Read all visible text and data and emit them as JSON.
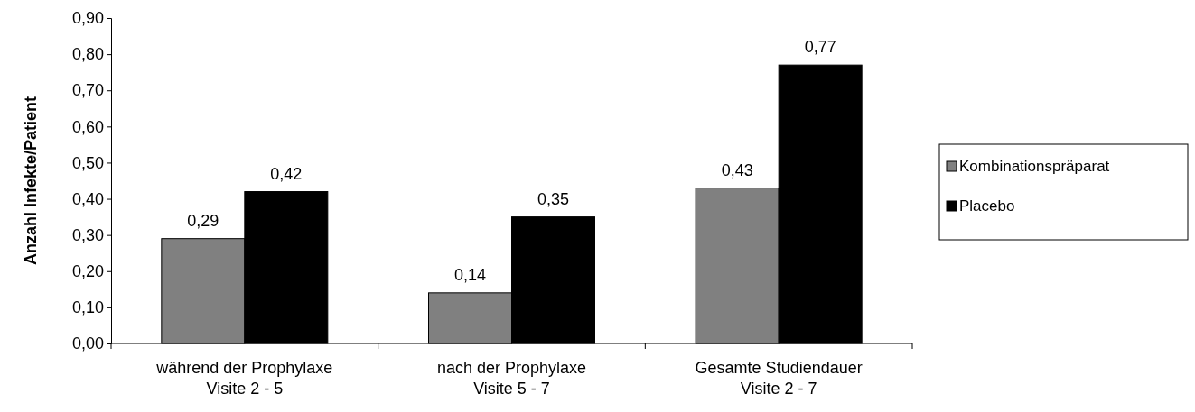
{
  "chart_data": {
    "type": "bar",
    "ylabel": "Anzahl Infekte/Patient",
    "categories": [
      "während der Prophylaxe\nVisite 2 - 5",
      "nach der Prophylaxe\nVisite 5 - 7",
      "Gesamte Studiendauer\nVisite 2 - 7"
    ],
    "series": [
      {
        "name": "Kombinationspräparat",
        "color": "#808080",
        "values": [
          0.29,
          0.14,
          0.43
        ],
        "value_labels": [
          "0,29",
          "0,14",
          "0,43"
        ]
      },
      {
        "name": "Placebo",
        "color": "#000000",
        "values": [
          0.42,
          0.35,
          0.77
        ],
        "value_labels": [
          "0,42",
          "0,35",
          "0,77"
        ]
      }
    ],
    "ylim": [
      0,
      0.9
    ],
    "yticks": [
      {
        "value": 0,
        "label": "0,00"
      },
      {
        "value": 0.1,
        "label": "0,10"
      },
      {
        "value": 0.2,
        "label": "0,20"
      },
      {
        "value": 0.3,
        "label": "0,30"
      },
      {
        "value": 0.4,
        "label": "0,40"
      },
      {
        "value": 0.5,
        "label": "0,50"
      },
      {
        "value": 0.6,
        "label": "0,60"
      },
      {
        "value": 0.7,
        "label": "0,70"
      },
      {
        "value": 0.8,
        "label": "0,80"
      },
      {
        "value": 0.9,
        "label": "0,90"
      }
    ],
    "grid": false,
    "legend": "right"
  }
}
